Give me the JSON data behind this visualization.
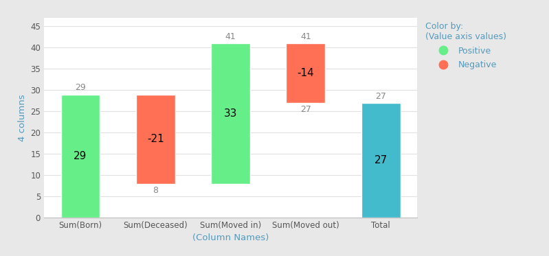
{
  "categories": [
    "Sum(Born)",
    "Sum(Deceased)",
    "Sum(Moved in)",
    "Sum(Moved out)",
    "Total"
  ],
  "bottoms": [
    0,
    8,
    8,
    27,
    0
  ],
  "bar_heights": [
    29,
    21,
    33,
    14,
    27
  ],
  "bar_colors": [
    "#66ee88",
    "#ff7055",
    "#66ee88",
    "#ff7055",
    "#44bbcc"
  ],
  "label_above": [
    29,
    null,
    41,
    41,
    27
  ],
  "label_below": [
    null,
    8,
    null,
    27,
    null
  ],
  "label_inside": [
    29,
    -21,
    33,
    -14,
    27
  ],
  "title": "",
  "xlabel": "(Column Names)",
  "ylabel": "4 columns",
  "ylim": [
    0,
    47
  ],
  "yticks": [
    0,
    5,
    10,
    15,
    20,
    25,
    30,
    35,
    40,
    45
  ],
  "legend_title": "Color by:\n(Value axis values)",
  "legend_positive_label": "Positive",
  "legend_negative_label": "Negative",
  "legend_positive_color": "#66ee88",
  "legend_negative_color": "#ff7055",
  "background_color": "#e8e8e8",
  "plot_bg_color": "#ffffff",
  "axis_label_color": "#5599bb",
  "tick_label_color": "#555555",
  "grid_color": "#e0e0e0",
  "label_color": "#888888"
}
